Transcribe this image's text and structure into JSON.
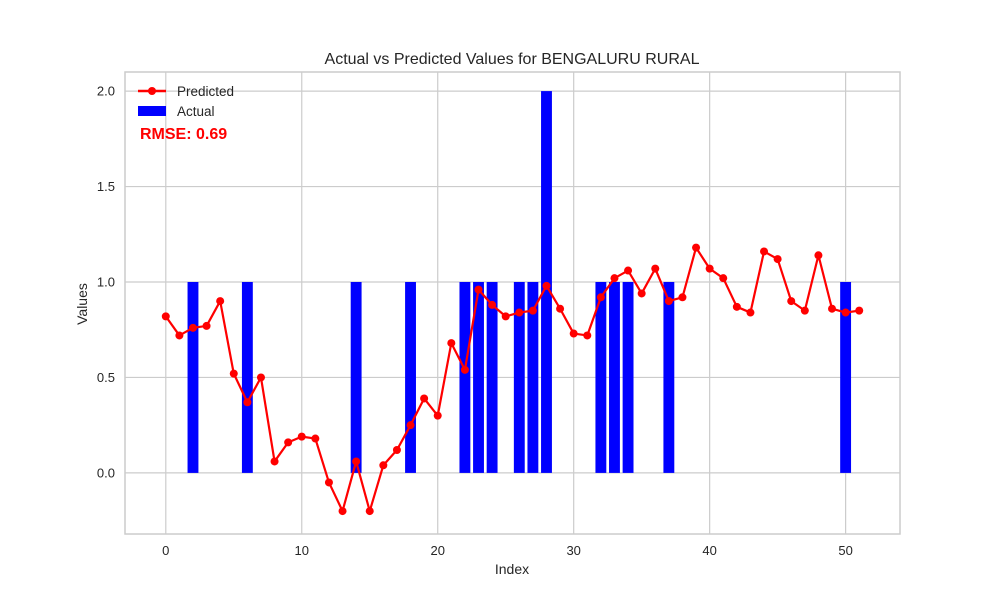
{
  "chart_data": {
    "type": "bar+line",
    "title": "Actual vs Predicted Values for BENGALURU RURAL",
    "xlabel": "Index",
    "ylabel": "Values",
    "xlim": [
      -3,
      54
    ],
    "ylim": [
      -0.32,
      2.1
    ],
    "xticks": [
      0,
      10,
      20,
      30,
      40,
      50
    ],
    "xtick_labels": [
      "0",
      "10",
      "20",
      "30",
      "40",
      "50"
    ],
    "yticks": [
      0.0,
      0.5,
      1.0,
      1.5,
      2.0
    ],
    "ytick_labels": [
      "0.0",
      "0.5",
      "1.0",
      "1.5",
      "2.0"
    ],
    "grid": true,
    "legend_position": "top-left",
    "annotation": "RMSE: 0.69",
    "series": [
      {
        "name": "Predicted",
        "kind": "line",
        "color": "#ff0000",
        "x": [
          0,
          1,
          2,
          3,
          4,
          5,
          6,
          7,
          8,
          9,
          10,
          11,
          12,
          13,
          14,
          15,
          16,
          17,
          18,
          19,
          20,
          21,
          22,
          23,
          24,
          25,
          26,
          27,
          28,
          29,
          30,
          31,
          32,
          33,
          34,
          35,
          36,
          37,
          38,
          39,
          40,
          41,
          42,
          43,
          44,
          45,
          46,
          47,
          48,
          49,
          50,
          51
        ],
        "values": [
          0.82,
          0.72,
          0.76,
          0.77,
          0.9,
          0.52,
          0.37,
          0.5,
          0.06,
          0.16,
          0.19,
          0.18,
          -0.05,
          -0.2,
          0.06,
          -0.2,
          0.04,
          0.12,
          0.25,
          0.39,
          0.3,
          0.68,
          0.54,
          0.96,
          0.88,
          0.82,
          0.84,
          0.85,
          0.98,
          0.86,
          0.73,
          0.72,
          0.92,
          1.02,
          1.06,
          0.94,
          1.07,
          0.9,
          0.92,
          1.18,
          1.07,
          1.02,
          0.87,
          0.84,
          1.16,
          1.12,
          0.9,
          0.85,
          1.14,
          0.86,
          0.84,
          0.85
        ]
      },
      {
        "name": "Actual",
        "kind": "bar",
        "color": "#0000ff",
        "x": [
          2,
          6,
          14,
          18,
          22,
          23,
          24,
          26,
          27,
          28,
          32,
          33,
          34,
          37,
          50
        ],
        "values": [
          1,
          1,
          1,
          1,
          1,
          1,
          1,
          1,
          1,
          2,
          1,
          1,
          1,
          1,
          1
        ]
      }
    ]
  }
}
